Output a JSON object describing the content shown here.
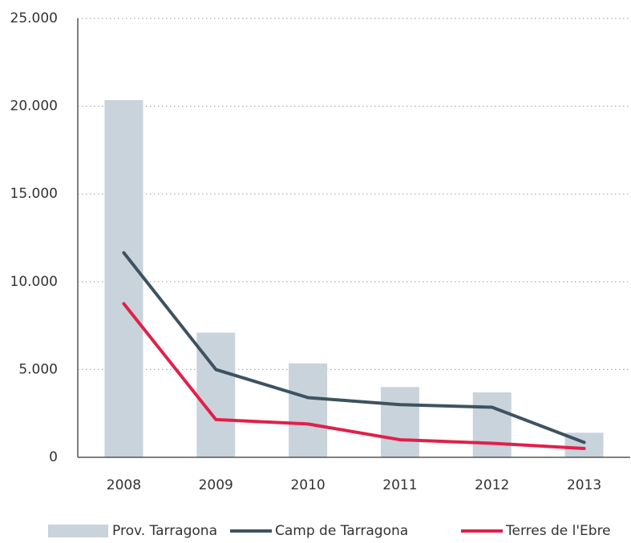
{
  "chart_data": {
    "type": "bar",
    "categories": [
      "2008",
      "2009",
      "2010",
      "2011",
      "2012",
      "2013"
    ],
    "series": [
      {
        "name": "Prov. Tarragona",
        "type": "bar",
        "color": "#c9d3dc",
        "values": [
          20350,
          7100,
          5350,
          4000,
          3700,
          1400
        ]
      },
      {
        "name": "Camp de Tarragona",
        "type": "line",
        "color": "#3e5260",
        "values": [
          11650,
          5000,
          3400,
          3000,
          2850,
          850
        ]
      },
      {
        "name": "Terres de l'Ebre",
        "type": "line",
        "color": "#e0204a",
        "values": [
          8750,
          2150,
          1900,
          1000,
          800,
          500
        ]
      }
    ],
    "ylim": [
      0,
      25000
    ],
    "yticks": [
      0,
      {
        "value": 5000,
        "label": "5.000"
      },
      {
        "value": 10000,
        "label": "10.000"
      },
      {
        "value": 15000,
        "label": "15.000"
      },
      {
        "value": 20000,
        "label": "20.000"
      },
      {
        "value": 25000,
        "label": "25.000"
      }
    ],
    "grid": true,
    "legend": "bottom"
  }
}
